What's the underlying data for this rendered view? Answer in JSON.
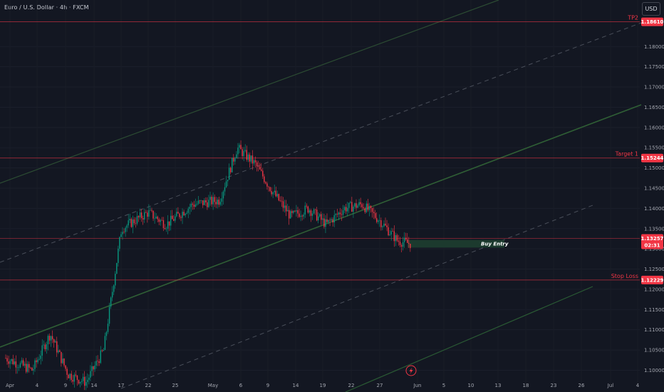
{
  "header": {
    "title": "Euro / U.S. Dollar · 4h · FXCM",
    "currency": "USD"
  },
  "colors": {
    "background": "#131722",
    "up": "#089981",
    "down": "#f23645",
    "level_line": "#f23645",
    "channel": "#2e7d32",
    "buy_box": "#1c3a2e"
  },
  "chart_data": {
    "type": "candlestick",
    "symbol": "EURUSD",
    "ylim": [
      1.0955,
      1.1915
    ],
    "y_ticks": [
      "1.18000",
      "1.17500",
      "1.17000",
      "1.16500",
      "1.16000",
      "1.15500",
      "1.15000",
      "1.14500",
      "1.14000",
      "1.13500",
      "1.13000",
      "1.12500",
      "1.12000",
      "1.11500",
      "1.11000",
      "1.10500",
      "1.10000"
    ],
    "x_ticks": [
      "Apr",
      "4",
      "9",
      "14",
      "17",
      "22",
      "25",
      "May",
      "6",
      "9",
      "14",
      "19",
      "22",
      "27",
      "Jun",
      "5",
      "10",
      "13",
      "18",
      "23",
      "26",
      "Jul",
      "4"
    ],
    "levels": [
      {
        "name": "TP2",
        "price": 1.1861,
        "tag": "1.18610"
      },
      {
        "name": "Target 1",
        "price": 1.15244,
        "tag": "1.15244"
      },
      {
        "name": "Stop Loss",
        "price": 1.12229,
        "tag": "1.12229"
      }
    ],
    "current_price": {
      "price": 1.13257,
      "tag": "1.13257",
      "countdown": "02:31"
    },
    "buy_entry": {
      "label": "Buy Entry",
      "top": 1.1322,
      "bottom": 1.1303
    },
    "price_path": [
      [
        0,
        1.103
      ],
      [
        3,
        1.1
      ],
      [
        5,
        1.109
      ],
      [
        7,
        1.099
      ],
      [
        9,
        1.097
      ],
      [
        11,
        1.105
      ],
      [
        13,
        1.135
      ],
      [
        16,
        1.139
      ],
      [
        18,
        1.136
      ],
      [
        21,
        1.141
      ],
      [
        24,
        1.142
      ],
      [
        26,
        1.155
      ],
      [
        28,
        1.151
      ],
      [
        30,
        1.144
      ],
      [
        32,
        1.138
      ],
      [
        34,
        1.14
      ],
      [
        36,
        1.136
      ],
      [
        38,
        1.14
      ],
      [
        40,
        1.141
      ],
      [
        42,
        1.137
      ],
      [
        44,
        1.132
      ],
      [
        46,
        1.131
      ],
      [
        48,
        1.129
      ],
      [
        50,
        1.133
      ],
      [
        52,
        1.136
      ],
      [
        54,
        1.134
      ],
      [
        56,
        1.13
      ],
      [
        58,
        1.125
      ],
      [
        60,
        1.118
      ],
      [
        62,
        1.109
      ],
      [
        64,
        1.118
      ],
      [
        66,
        1.12
      ],
      [
        68,
        1.117
      ],
      [
        70,
        1.115
      ],
      [
        72,
        1.119
      ],
      [
        74,
        1.124
      ],
      [
        76,
        1.13
      ],
      [
        78,
        1.131
      ],
      [
        80,
        1.137
      ],
      [
        82,
        1.139
      ],
      [
        84,
        1.133
      ],
      [
        86,
        1.13
      ],
      [
        88,
        1.123
      ],
      [
        89,
        1.13
      ],
      [
        90,
        1.137
      ],
      [
        91,
        1.138
      ],
      [
        92,
        1.134
      ]
    ],
    "legend": "none"
  }
}
